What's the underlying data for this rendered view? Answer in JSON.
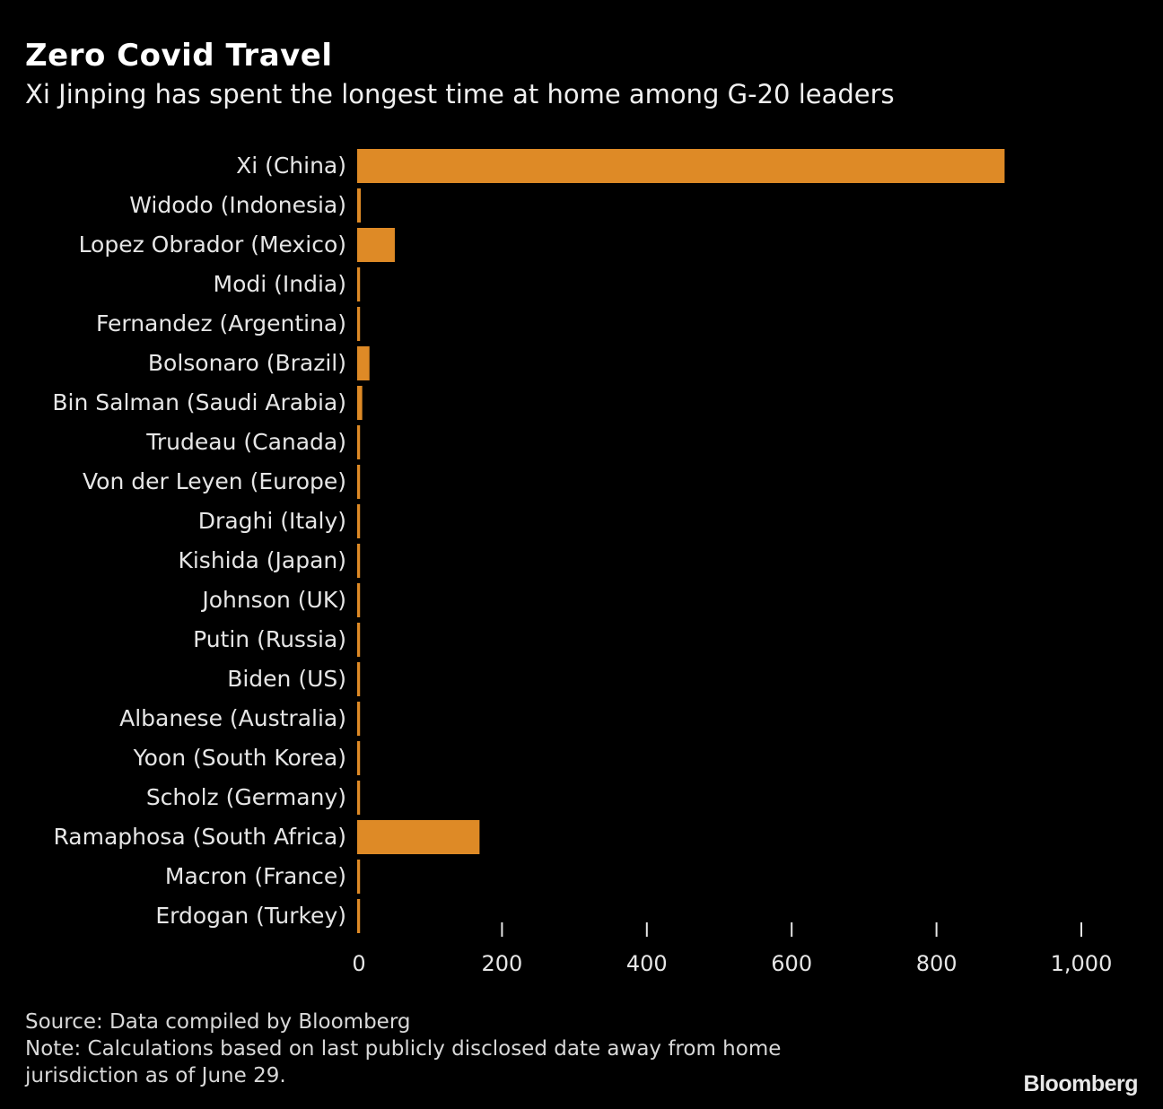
{
  "chart_data": {
    "type": "bar",
    "orientation": "horizontal",
    "title": "Zero Covid Travel",
    "subtitle": "Xi Jinping has spent the longest time at home among G-20 leaders",
    "categories": [
      "Xi (China)",
      "Widodo (Indonesia)",
      "Lopez Obrador (Mexico)",
      "Modi (India)",
      "Fernandez (Argentina)",
      "Bolsonaro (Brazil)",
      "Bin Salman (Saudi Arabia)",
      "Trudeau (Canada)",
      "Von der Leyen (Europe)",
      "Draghi (Italy)",
      "Kishida (Japan)",
      "Johnson (UK)",
      "Putin (Russia)",
      "Biden (US)",
      "Albanese (Australia)",
      "Yoon (South Korea)",
      "Scholz (Germany)",
      "Ramaphosa (South Africa)",
      "Macron (France)",
      "Erdogan (Turkey)"
    ],
    "values": [
      894,
      5,
      52,
      4,
      4,
      17,
      7,
      4,
      4,
      4,
      4,
      4,
      4,
      4,
      4,
      4,
      4,
      169,
      4,
      4
    ],
    "xlim": [
      0,
      1000
    ],
    "xticks": [
      0,
      200,
      400,
      600,
      800,
      1000
    ],
    "xtick_labels": [
      "0",
      "200",
      "400",
      "600",
      "800",
      "1,000"
    ],
    "xlabel": "",
    "ylabel": "",
    "grid": false,
    "bar_color": "#de8a26"
  },
  "footer": {
    "source": "Source: Data compiled by Bloomberg",
    "note": "Note: Calculations based on last publicly disclosed date away from home jurisdiction as of June 29.",
    "logo": "Bloomberg"
  }
}
